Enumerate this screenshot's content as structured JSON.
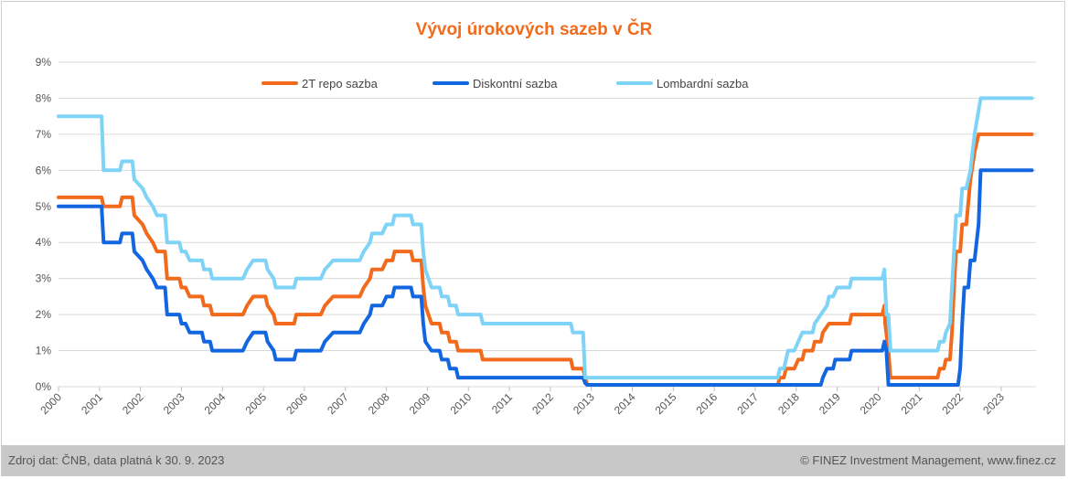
{
  "chart_data": {
    "type": "line",
    "title": "Vývoj úrokových sazeb v ČR",
    "xlabel": "",
    "ylabel": "",
    "ylim": [
      0,
      9
    ],
    "xlim": [
      2000,
      2023.85
    ],
    "legend_position": "top",
    "grid": "horizontal",
    "y_ticks": [
      "0%",
      "1%",
      "2%",
      "3%",
      "4%",
      "5%",
      "6%",
      "7%",
      "8%",
      "9%"
    ],
    "x_ticks": [
      "2000",
      "2001",
      "2002",
      "2003",
      "2004",
      "2005",
      "2006",
      "2007",
      "2008",
      "2009",
      "2010",
      "2011",
      "2012",
      "2013",
      "2014",
      "2015",
      "2016",
      "2017",
      "2018",
      "2019",
      "2020",
      "2021",
      "2022",
      "2023"
    ],
    "series": [
      {
        "name": "2T repo sazba",
        "color": "#f26a1b",
        "points": [
          [
            2000,
            5.25
          ],
          [
            2001.05,
            5.25
          ],
          [
            2001.1,
            5.0
          ],
          [
            2001.5,
            5.0
          ],
          [
            2001.55,
            5.25
          ],
          [
            2001.8,
            5.25
          ],
          [
            2001.85,
            4.75
          ],
          [
            2002.05,
            4.5
          ],
          [
            2002.15,
            4.25
          ],
          [
            2002.3,
            4.0
          ],
          [
            2002.4,
            3.75
          ],
          [
            2002.6,
            3.75
          ],
          [
            2002.65,
            3.0
          ],
          [
            2002.95,
            3.0
          ],
          [
            2003.0,
            2.75
          ],
          [
            2003.1,
            2.75
          ],
          [
            2003.2,
            2.5
          ],
          [
            2003.5,
            2.5
          ],
          [
            2003.55,
            2.25
          ],
          [
            2003.7,
            2.25
          ],
          [
            2003.75,
            2.0
          ],
          [
            2004.5,
            2.0
          ],
          [
            2004.6,
            2.25
          ],
          [
            2004.75,
            2.5
          ],
          [
            2005.05,
            2.5
          ],
          [
            2005.1,
            2.25
          ],
          [
            2005.25,
            2.0
          ],
          [
            2005.3,
            1.75
          ],
          [
            2005.75,
            1.75
          ],
          [
            2005.8,
            2.0
          ],
          [
            2006.4,
            2.0
          ],
          [
            2006.5,
            2.25
          ],
          [
            2006.7,
            2.5
          ],
          [
            2007.35,
            2.5
          ],
          [
            2007.45,
            2.75
          ],
          [
            2007.6,
            3.0
          ],
          [
            2007.65,
            3.25
          ],
          [
            2007.9,
            3.25
          ],
          [
            2008.0,
            3.5
          ],
          [
            2008.15,
            3.5
          ],
          [
            2008.2,
            3.75
          ],
          [
            2008.6,
            3.75
          ],
          [
            2008.65,
            3.5
          ],
          [
            2008.85,
            3.5
          ],
          [
            2008.9,
            2.75
          ],
          [
            2008.95,
            2.25
          ],
          [
            2009.1,
            1.75
          ],
          [
            2009.3,
            1.75
          ],
          [
            2009.35,
            1.5
          ],
          [
            2009.5,
            1.5
          ],
          [
            2009.55,
            1.25
          ],
          [
            2009.7,
            1.25
          ],
          [
            2009.75,
            1.0
          ],
          [
            2010.3,
            1.0
          ],
          [
            2010.35,
            0.75
          ],
          [
            2012.5,
            0.75
          ],
          [
            2012.55,
            0.5
          ],
          [
            2012.8,
            0.5
          ],
          [
            2012.85,
            0.25
          ],
          [
            2012.9,
            0.05
          ],
          [
            2017.55,
            0.05
          ],
          [
            2017.6,
            0.25
          ],
          [
            2017.7,
            0.25
          ],
          [
            2017.75,
            0.5
          ],
          [
            2017.95,
            0.5
          ],
          [
            2018.05,
            0.75
          ],
          [
            2018.15,
            0.75
          ],
          [
            2018.2,
            1.0
          ],
          [
            2018.4,
            1.0
          ],
          [
            2018.45,
            1.25
          ],
          [
            2018.6,
            1.25
          ],
          [
            2018.65,
            1.5
          ],
          [
            2018.8,
            1.75
          ],
          [
            2019.3,
            1.75
          ],
          [
            2019.35,
            2.0
          ],
          [
            2020.1,
            2.0
          ],
          [
            2020.15,
            2.25
          ],
          [
            2020.17,
            1.75
          ],
          [
            2020.25,
            1.0
          ],
          [
            2020.3,
            0.25
          ],
          [
            2021.45,
            0.25
          ],
          [
            2021.5,
            0.5
          ],
          [
            2021.6,
            0.5
          ],
          [
            2021.65,
            0.75
          ],
          [
            2021.75,
            0.75
          ],
          [
            2021.8,
            1.5
          ],
          [
            2021.85,
            2.75
          ],
          [
            2021.9,
            3.75
          ],
          [
            2022.0,
            3.75
          ],
          [
            2022.05,
            4.5
          ],
          [
            2022.15,
            4.5
          ],
          [
            2022.25,
            5.75
          ],
          [
            2022.35,
            6.5
          ],
          [
            2022.45,
            7.0
          ],
          [
            2023.75,
            7.0
          ]
        ]
      },
      {
        "name": "Diskontní sazba",
        "color": "#1266e0",
        "points": [
          [
            2000,
            5.0
          ],
          [
            2001.05,
            5.0
          ],
          [
            2001.1,
            4.0
          ],
          [
            2001.5,
            4.0
          ],
          [
            2001.55,
            4.25
          ],
          [
            2001.8,
            4.25
          ],
          [
            2001.85,
            3.75
          ],
          [
            2002.05,
            3.5
          ],
          [
            2002.15,
            3.25
          ],
          [
            2002.3,
            3.0
          ],
          [
            2002.4,
            2.75
          ],
          [
            2002.6,
            2.75
          ],
          [
            2002.65,
            2.0
          ],
          [
            2002.95,
            2.0
          ],
          [
            2003.0,
            1.75
          ],
          [
            2003.1,
            1.75
          ],
          [
            2003.2,
            1.5
          ],
          [
            2003.5,
            1.5
          ],
          [
            2003.55,
            1.25
          ],
          [
            2003.7,
            1.25
          ],
          [
            2003.75,
            1.0
          ],
          [
            2004.5,
            1.0
          ],
          [
            2004.6,
            1.25
          ],
          [
            2004.75,
            1.5
          ],
          [
            2005.05,
            1.5
          ],
          [
            2005.1,
            1.25
          ],
          [
            2005.25,
            1.0
          ],
          [
            2005.3,
            0.75
          ],
          [
            2005.75,
            0.75
          ],
          [
            2005.8,
            1.0
          ],
          [
            2006.4,
            1.0
          ],
          [
            2006.5,
            1.25
          ],
          [
            2006.7,
            1.5
          ],
          [
            2007.35,
            1.5
          ],
          [
            2007.45,
            1.75
          ],
          [
            2007.6,
            2.0
          ],
          [
            2007.65,
            2.25
          ],
          [
            2007.9,
            2.25
          ],
          [
            2008.0,
            2.5
          ],
          [
            2008.15,
            2.5
          ],
          [
            2008.2,
            2.75
          ],
          [
            2008.6,
            2.75
          ],
          [
            2008.65,
            2.5
          ],
          [
            2008.85,
            2.5
          ],
          [
            2008.9,
            1.75
          ],
          [
            2008.95,
            1.25
          ],
          [
            2009.1,
            1.0
          ],
          [
            2009.3,
            1.0
          ],
          [
            2009.35,
            0.75
          ],
          [
            2009.5,
            0.75
          ],
          [
            2009.55,
            0.5
          ],
          [
            2009.7,
            0.5
          ],
          [
            2009.75,
            0.25
          ],
          [
            2012.8,
            0.25
          ],
          [
            2012.85,
            0.1
          ],
          [
            2012.9,
            0.05
          ],
          [
            2018.6,
            0.05
          ],
          [
            2018.65,
            0.25
          ],
          [
            2018.75,
            0.5
          ],
          [
            2018.9,
            0.5
          ],
          [
            2018.95,
            0.75
          ],
          [
            2019.3,
            0.75
          ],
          [
            2019.35,
            1.0
          ],
          [
            2020.1,
            1.0
          ],
          [
            2020.15,
            1.25
          ],
          [
            2020.2,
            1.0
          ],
          [
            2020.25,
            0.05
          ],
          [
            2021.95,
            0.05
          ],
          [
            2022.0,
            0.5
          ],
          [
            2022.05,
            1.75
          ],
          [
            2022.1,
            2.75
          ],
          [
            2022.2,
            2.75
          ],
          [
            2022.25,
            3.5
          ],
          [
            2022.35,
            3.5
          ],
          [
            2022.45,
            4.5
          ],
          [
            2022.5,
            6.0
          ],
          [
            2023.75,
            6.0
          ]
        ]
      },
      {
        "name": "Lombardní sazba",
        "color": "#7fd3f7",
        "points": [
          [
            2000,
            7.5
          ],
          [
            2001.05,
            7.5
          ],
          [
            2001.1,
            6.0
          ],
          [
            2001.5,
            6.0
          ],
          [
            2001.55,
            6.25
          ],
          [
            2001.8,
            6.25
          ],
          [
            2001.85,
            5.75
          ],
          [
            2002.05,
            5.5
          ],
          [
            2002.15,
            5.25
          ],
          [
            2002.3,
            5.0
          ],
          [
            2002.4,
            4.75
          ],
          [
            2002.6,
            4.75
          ],
          [
            2002.65,
            4.0
          ],
          [
            2002.95,
            4.0
          ],
          [
            2003.0,
            3.75
          ],
          [
            2003.1,
            3.75
          ],
          [
            2003.2,
            3.5
          ],
          [
            2003.5,
            3.5
          ],
          [
            2003.55,
            3.25
          ],
          [
            2003.7,
            3.25
          ],
          [
            2003.75,
            3.0
          ],
          [
            2004.5,
            3.0
          ],
          [
            2004.6,
            3.25
          ],
          [
            2004.75,
            3.5
          ],
          [
            2005.05,
            3.5
          ],
          [
            2005.1,
            3.25
          ],
          [
            2005.25,
            3.0
          ],
          [
            2005.3,
            2.75
          ],
          [
            2005.75,
            2.75
          ],
          [
            2005.8,
            3.0
          ],
          [
            2006.4,
            3.0
          ],
          [
            2006.5,
            3.25
          ],
          [
            2006.7,
            3.5
          ],
          [
            2007.35,
            3.5
          ],
          [
            2007.45,
            3.75
          ],
          [
            2007.6,
            4.0
          ],
          [
            2007.65,
            4.25
          ],
          [
            2007.9,
            4.25
          ],
          [
            2008.0,
            4.5
          ],
          [
            2008.15,
            4.5
          ],
          [
            2008.2,
            4.75
          ],
          [
            2008.6,
            4.75
          ],
          [
            2008.65,
            4.5
          ],
          [
            2008.85,
            4.5
          ],
          [
            2008.9,
            3.75
          ],
          [
            2008.95,
            3.25
          ],
          [
            2009.1,
            2.75
          ],
          [
            2009.3,
            2.75
          ],
          [
            2009.35,
            2.5
          ],
          [
            2009.5,
            2.5
          ],
          [
            2009.55,
            2.25
          ],
          [
            2009.7,
            2.25
          ],
          [
            2009.75,
            2.0
          ],
          [
            2010.3,
            2.0
          ],
          [
            2010.35,
            1.75
          ],
          [
            2012.5,
            1.75
          ],
          [
            2012.55,
            1.5
          ],
          [
            2012.8,
            1.5
          ],
          [
            2012.85,
            0.25
          ],
          [
            2017.55,
            0.25
          ],
          [
            2017.6,
            0.5
          ],
          [
            2017.7,
            0.5
          ],
          [
            2017.75,
            0.75
          ],
          [
            2017.8,
            1.0
          ],
          [
            2017.95,
            1.0
          ],
          [
            2018.05,
            1.25
          ],
          [
            2018.15,
            1.5
          ],
          [
            2018.4,
            1.5
          ],
          [
            2018.45,
            1.75
          ],
          [
            2018.6,
            2.0
          ],
          [
            2018.75,
            2.25
          ],
          [
            2018.8,
            2.5
          ],
          [
            2018.9,
            2.5
          ],
          [
            2019.0,
            2.75
          ],
          [
            2019.3,
            2.75
          ],
          [
            2019.35,
            3.0
          ],
          [
            2020.1,
            3.0
          ],
          [
            2020.15,
            3.25
          ],
          [
            2020.2,
            2.0
          ],
          [
            2020.25,
            2.0
          ],
          [
            2020.3,
            1.0
          ],
          [
            2021.45,
            1.0
          ],
          [
            2021.5,
            1.25
          ],
          [
            2021.6,
            1.25
          ],
          [
            2021.65,
            1.5
          ],
          [
            2021.75,
            1.75
          ],
          [
            2021.8,
            2.75
          ],
          [
            2021.9,
            4.75
          ],
          [
            2022.0,
            4.75
          ],
          [
            2022.05,
            5.5
          ],
          [
            2022.15,
            5.5
          ],
          [
            2022.25,
            6.0
          ],
          [
            2022.35,
            7.0
          ],
          [
            2022.5,
            8.0
          ],
          [
            2023.75,
            8.0
          ]
        ]
      }
    ]
  },
  "footer": {
    "source": "Zdroj dat: ČNB, data platná k 30. 9. 2023",
    "copyright": "© FINEZ Investment Management, www.finez.cz"
  }
}
